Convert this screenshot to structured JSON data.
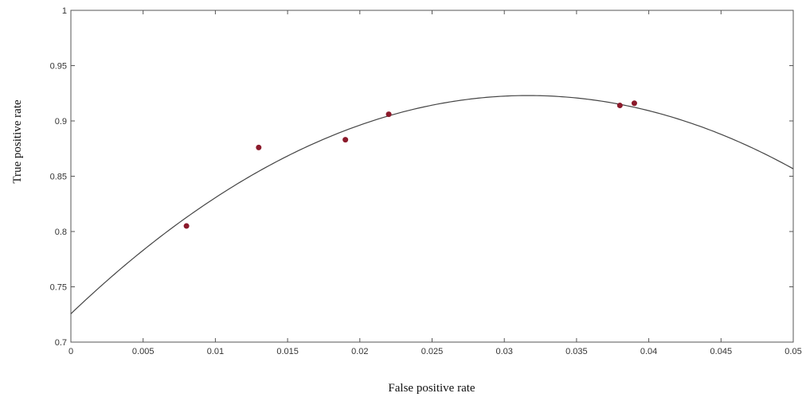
{
  "chart_data": {
    "type": "scatter",
    "xlabel": "False positive rate",
    "ylabel": "True positive rate",
    "xlim": [
      0,
      0.05
    ],
    "ylim": [
      0.7,
      1
    ],
    "x_ticks": [
      "0",
      "0.005",
      "0.01",
      "0.015",
      "0.02",
      "0.025",
      "0.03",
      "0.035",
      "0.04",
      "0.045",
      "0.05"
    ],
    "y_ticks": [
      "0.7",
      "0.75",
      "0.8",
      "0.85",
      "0.9",
      "0.95",
      "1"
    ],
    "grid": false,
    "points": {
      "color": "#8b1a2b",
      "x": [
        0.008,
        0.013,
        0.019,
        0.022,
        0.038,
        0.039
      ],
      "y": [
        0.805,
        0.876,
        0.883,
        0.906,
        0.914,
        0.916
      ]
    },
    "fit_curve": {
      "color": "#444444",
      "x": [
        0,
        0.005,
        0.01,
        0.015,
        0.02,
        0.025,
        0.03,
        0.035,
        0.04,
        0.045,
        0.05
      ],
      "y": [
        0.727,
        0.783,
        0.83,
        0.866,
        0.895,
        0.915,
        0.924,
        0.922,
        0.91,
        0.887,
        0.856
      ]
    }
  }
}
